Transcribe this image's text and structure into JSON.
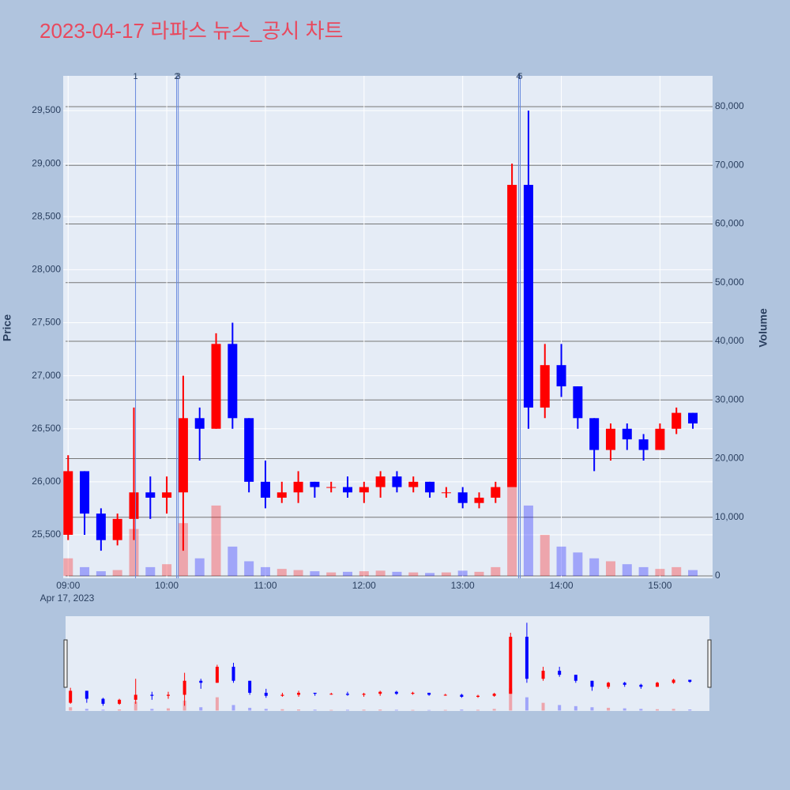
{
  "chart_data": {
    "type": "candlestick",
    "title": "2023-04-17 라파스 뉴스_공시 차트",
    "y_title": "Price",
    "y2_title": "Volume",
    "x_date_label": "Apr 17, 2023",
    "increasing_color": "#ff0000",
    "decreasing_color": "#0000ff",
    "grid": true,
    "rangeslider": true,
    "x": [
      "2023-04-17 09:00",
      "2023-04-17 09:10",
      "2023-04-17 09:20",
      "2023-04-17 09:30",
      "2023-04-17 09:40",
      "2023-04-17 09:50",
      "2023-04-17 10:00",
      "2023-04-17 10:10",
      "2023-04-17 10:20",
      "2023-04-17 10:30",
      "2023-04-17 10:40",
      "2023-04-17 10:50",
      "2023-04-17 11:00",
      "2023-04-17 11:10",
      "2023-04-17 11:20",
      "2023-04-17 11:30",
      "2023-04-17 11:40",
      "2023-04-17 11:50",
      "2023-04-17 12:00",
      "2023-04-17 12:10",
      "2023-04-17 12:20",
      "2023-04-17 12:30",
      "2023-04-17 12:40",
      "2023-04-17 12:50",
      "2023-04-17 13:00",
      "2023-04-17 13:10",
      "2023-04-17 13:20",
      "2023-04-17 13:30",
      "2023-04-17 13:40",
      "2023-04-17 13:50",
      "2023-04-17 14:00",
      "2023-04-17 14:10",
      "2023-04-17 14:20",
      "2023-04-17 14:30",
      "2023-04-17 14:40",
      "2023-04-17 14:50",
      "2023-04-17 15:00",
      "2023-04-17 15:10",
      "2023-04-17 15:20"
    ],
    "open": [
      25500,
      26100,
      25700,
      25450,
      25650,
      25900,
      25850,
      25900,
      26600,
      26500,
      27300,
      26600,
      26000,
      25850,
      25900,
      26000,
      25950,
      25950,
      25900,
      25950,
      26050,
      25950,
      26000,
      25900,
      25900,
      25800,
      25850,
      25950,
      28800,
      26700,
      27100,
      26900,
      26600,
      26300,
      26500,
      26400,
      26300,
      26500,
      26650
    ],
    "high": [
      26250,
      26100,
      25750,
      25700,
      26700,
      26050,
      26050,
      27000,
      26700,
      27400,
      27500,
      26600,
      26200,
      26000,
      26100,
      26000,
      26000,
      26050,
      26000,
      26100,
      26100,
      26050,
      26000,
      25950,
      25950,
      25900,
      26000,
      29000,
      29500,
      27300,
      27300,
      26900,
      26600,
      26550,
      26550,
      26450,
      26550,
      26700,
      26650
    ],
    "low": [
      25450,
      25500,
      25350,
      25400,
      25450,
      25650,
      25700,
      25350,
      26200,
      26500,
      26500,
      25900,
      25750,
      25800,
      25800,
      25850,
      25900,
      25850,
      25800,
      25850,
      25900,
      25900,
      25850,
      25850,
      25750,
      25750,
      25800,
      25950,
      26500,
      26600,
      26800,
      26500,
      26100,
      26200,
      26300,
      26200,
      26300,
      26450,
      26500
    ],
    "close": [
      26100,
      25700,
      25450,
      25650,
      25900,
      25850,
      25900,
      26600,
      26500,
      27300,
      26600,
      26000,
      25850,
      25900,
      26000,
      25950,
      25950,
      25900,
      25950,
      26050,
      25950,
      26000,
      25900,
      25900,
      25800,
      25850,
      25950,
      28800,
      26700,
      27100,
      26900,
      26600,
      26300,
      26500,
      26400,
      26300,
      26500,
      26650,
      26550
    ],
    "volume": [
      3000,
      1500,
      800,
      1000,
      8000,
      1500,
      2000,
      9000,
      3000,
      12000,
      5000,
      2500,
      1500,
      1200,
      1000,
      800,
      600,
      700,
      800,
      900,
      700,
      600,
      500,
      600,
      900,
      700,
      1500,
      20000,
      12000,
      7000,
      5000,
      4000,
      3000,
      2500,
      2000,
      1500,
      1200,
      1500,
      1000
    ],
    "xlim": [
      "2023-04-17 08:57",
      "2023-04-17 15:32"
    ],
    "xticks": [
      {
        "value": "2023-04-17 09:00",
        "label": "09:00"
      },
      {
        "value": "2023-04-17 10:00",
        "label": "10:00"
      },
      {
        "value": "2023-04-17 11:00",
        "label": "11:00"
      },
      {
        "value": "2023-04-17 12:00",
        "label": "12:00"
      },
      {
        "value": "2023-04-17 13:00",
        "label": "13:00"
      },
      {
        "value": "2023-04-17 14:00",
        "label": "14:00"
      },
      {
        "value": "2023-04-17 15:00",
        "label": "15:00"
      }
    ],
    "ylim": [
      25090,
      29828
    ],
    "yticks": [
      {
        "value": 25500,
        "label": "25,500"
      },
      {
        "value": 26000,
        "label": "26,000"
      },
      {
        "value": 26500,
        "label": "26,500"
      },
      {
        "value": 27000,
        "label": "27,000"
      },
      {
        "value": 27500,
        "label": "27,500"
      },
      {
        "value": 28000,
        "label": "28,000"
      },
      {
        "value": 28500,
        "label": "28,500"
      },
      {
        "value": 29000,
        "label": "29,000"
      },
      {
        "value": 29500,
        "label": "29,500"
      }
    ],
    "y2lim": [
      -400,
      85250
    ],
    "y2ticks": [
      0,
      {
        "value": 10000,
        "label": "10,000"
      },
      {
        "value": 20000,
        "label": "20,000"
      },
      {
        "value": 30000,
        "label": "30,000"
      },
      {
        "value": 40000,
        "label": "40,000"
      },
      {
        "value": 50000,
        "label": "50,000"
      },
      {
        "value": 60000,
        "label": "60,000"
      },
      {
        "value": 70000,
        "label": "70,000"
      },
      {
        "value": 80000,
        "label": "80,000"
      }
    ],
    "news_lines": [
      {
        "x": "2023-04-17 09:41",
        "label": "1"
      },
      {
        "x": "2023-04-17 10:06",
        "label": "2"
      },
      {
        "x": "2023-04-17 10:07",
        "label": "3"
      },
      {
        "x": "2023-04-17 13:34",
        "label": "4"
      },
      {
        "x": "2023-04-17 13:35",
        "label": "5"
      }
    ]
  }
}
